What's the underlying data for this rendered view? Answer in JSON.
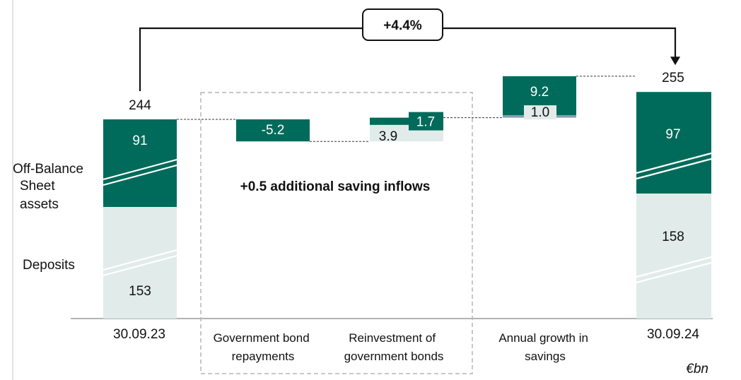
{
  "chart_data": {
    "type": "waterfall",
    "unit": "€bn",
    "colors": {
      "dark": "#006b5a",
      "light": "#e1ecea",
      "accent": "#7f9fb6"
    },
    "series_labels": {
      "off_balance": [
        "Off-Balance",
        "Sheet",
        "assets"
      ],
      "deposits": "Deposits"
    },
    "start": {
      "category": "30.09.23",
      "total": 244,
      "deposits": 153,
      "off_balance": 91
    },
    "steps": [
      {
        "category": [
          "Government bond",
          "repayments"
        ],
        "dark": -5.2,
        "light": null,
        "labels": [
          "-5.2"
        ]
      },
      {
        "category": [
          "Reinvestment of",
          "government bonds"
        ],
        "dark": 1.7,
        "light": 3.9,
        "labels": [
          "1.7",
          "3.9"
        ]
      },
      {
        "category": [
          "Annual growth in",
          "savings"
        ],
        "dark": 9.2,
        "light": 1.0,
        "labels": [
          "9.2",
          "1.0"
        ]
      }
    ],
    "end": {
      "category": "30.09.24",
      "total": 255,
      "deposits": 158,
      "off_balance": 97
    },
    "growth_label": "+4.4%",
    "annotation": "+0.5 additional saving inflows"
  }
}
